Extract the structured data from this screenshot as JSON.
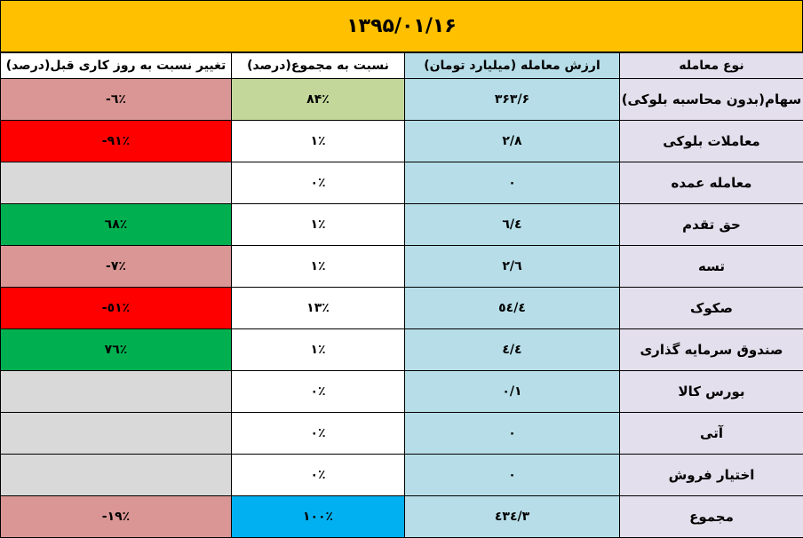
{
  "title": "۱۳۹۵/۰۱/۱۶",
  "headers": {
    "change": "تغییر نسبت به روز کاری قبل(درصد)",
    "share": "نسبت به مجموع(درصد)",
    "value": "ارزش معامله (میلیارد تومان)",
    "type": "نوع معامله"
  },
  "colors": {
    "title": "#FFC000",
    "pink": "#DA9694",
    "lightgreen": "#C4D79B",
    "lightblue": "#B7DEE8",
    "lavender": "#E4DFEC",
    "red": "#FF0000",
    "green": "#00B050",
    "gray": "#D9D9D9",
    "totalblue": "#00B0F0"
  },
  "rows": [
    {
      "type": "سهام(بدون محاسبه بلوکی)",
      "value": "۳۶۳/۶",
      "share": "۸۴٪",
      "change": "-٦٪",
      "change_color": "#DA9694",
      "share_color": "#C4D79B"
    },
    {
      "type": "معاملات بلوکی",
      "value": "۲/۸",
      "share": "۱٪",
      "change": "-۹۱٪",
      "change_color": "#FF0000",
      "share_color": "#FFFFFF"
    },
    {
      "type": "معامله عمده",
      "value": "۰",
      "share": "۰٪",
      "change": "",
      "change_color": "#D9D9D9",
      "share_color": "#FFFFFF"
    },
    {
      "type": "حق تقدم",
      "value": "٦/٤",
      "share": "۱٪",
      "change": "٦۸٪",
      "change_color": "#00B050",
      "share_color": "#FFFFFF"
    },
    {
      "type": "تسه",
      "value": "۲/٦",
      "share": "۱٪",
      "change": "-۷٪",
      "change_color": "#DA9694",
      "share_color": "#FFFFFF"
    },
    {
      "type": "صکوک",
      "value": "٥٤/٤",
      "share": "۱۳٪",
      "change": "-٥۱٪",
      "change_color": "#FF0000",
      "share_color": "#FFFFFF"
    },
    {
      "type": "صندوق سرمایه گذاری",
      "value": "٤/٤",
      "share": "۱٪",
      "change": "۷٦٪",
      "change_color": "#00B050",
      "share_color": "#FFFFFF"
    },
    {
      "type": "بورس کالا",
      "value": "۰/۱",
      "share": "۰٪",
      "change": "",
      "change_color": "#D9D9D9",
      "share_color": "#FFFFFF"
    },
    {
      "type": "آتی",
      "value": "۰",
      "share": "۰٪",
      "change": "",
      "change_color": "#D9D9D9",
      "share_color": "#FFFFFF"
    },
    {
      "type": "اختیار فروش",
      "value": "۰",
      "share": "۰٪",
      "change": "",
      "change_color": "#D9D9D9",
      "share_color": "#FFFFFF"
    },
    {
      "type": "مجموع",
      "value": "٤۳٤/۳",
      "share": "۱۰۰٪",
      "change": "-۱۹٪",
      "change_color": "#DA9694",
      "share_color": "#00B0F0"
    }
  ]
}
